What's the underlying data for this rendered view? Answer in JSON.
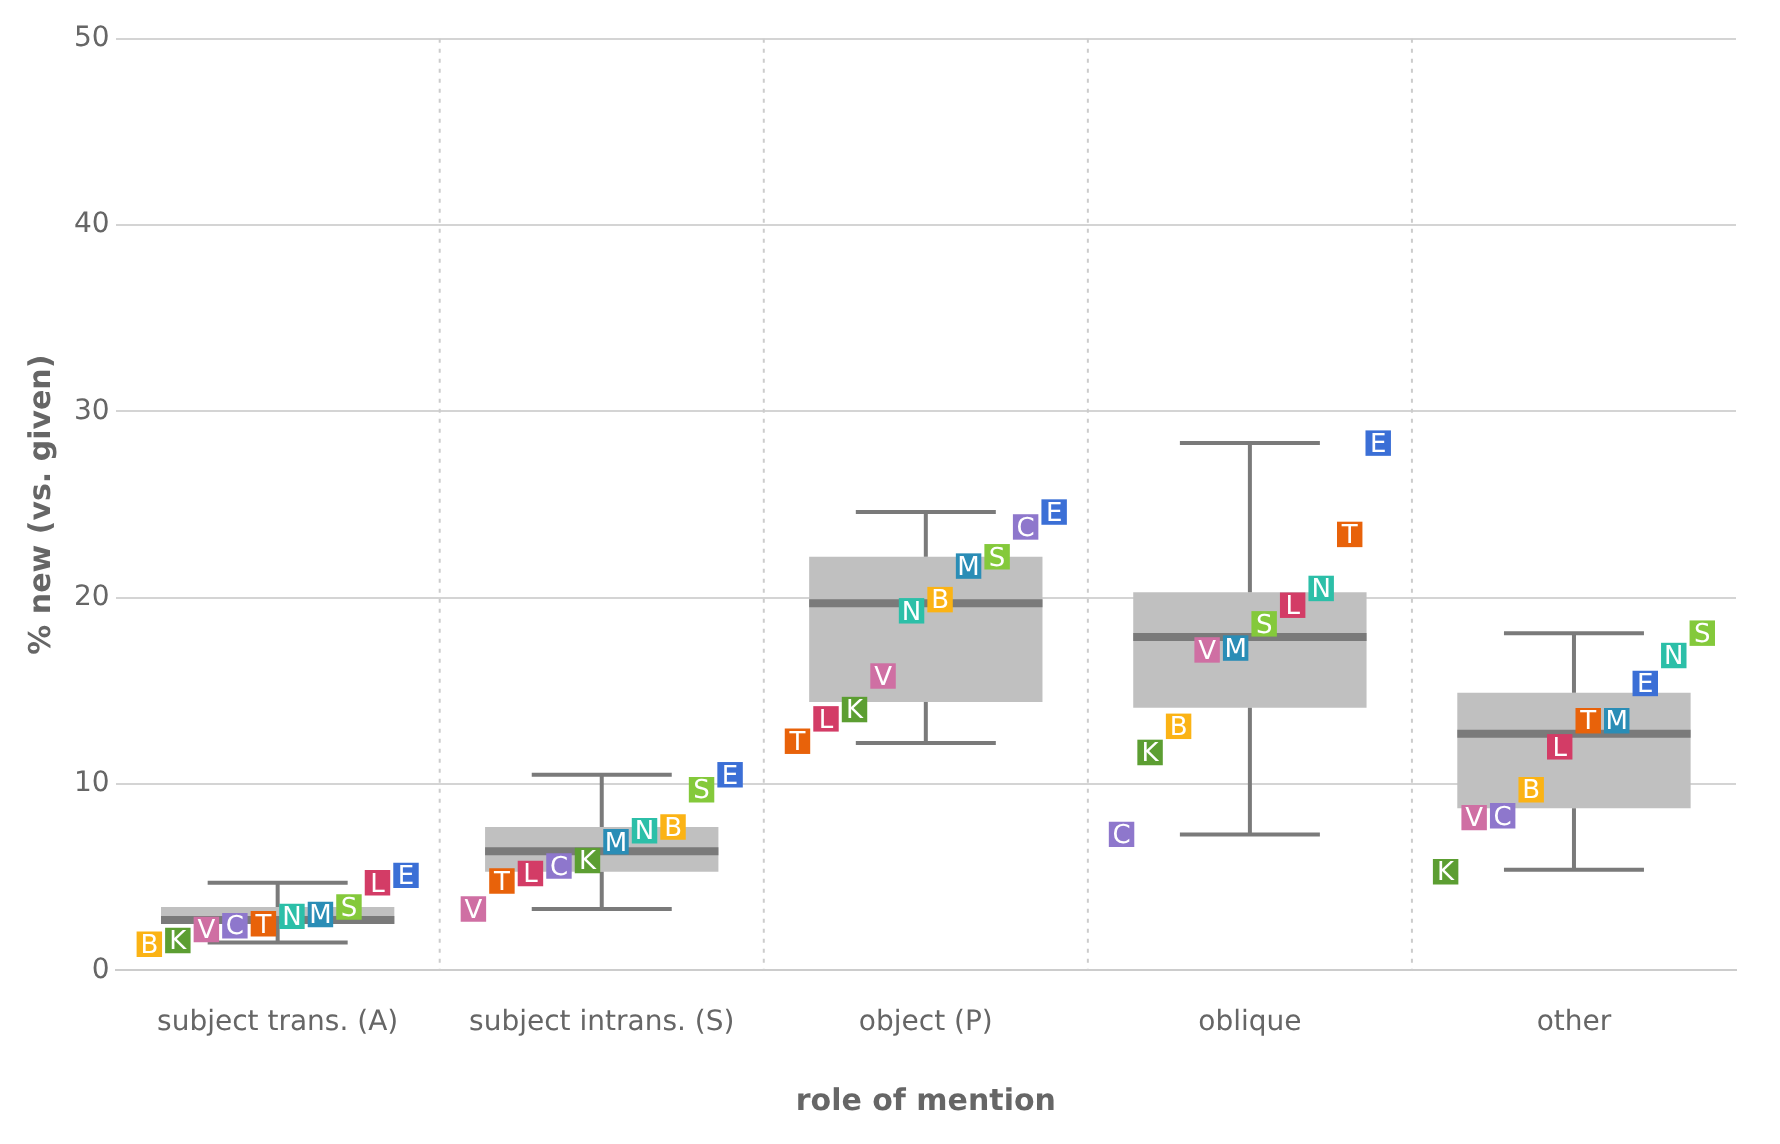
{
  "chart_data": {
    "type": "box",
    "xlabel": "role of mention",
    "ylabel": "% new (vs. given)",
    "categories": [
      "subject trans. (A)",
      "subject intrans. (S)",
      "object (P)",
      "oblique",
      "other"
    ],
    "boxes": [
      {
        "low": 1.5,
        "q1": 2.5,
        "median": 2.7,
        "q3": 3.4,
        "high": 4.7
      },
      {
        "low": 3.3,
        "q1": 5.3,
        "median": 6.4,
        "q3": 7.7,
        "high": 10.5
      },
      {
        "low": 12.2,
        "q1": 14.4,
        "median": 19.7,
        "q3": 22.2,
        "high": 24.6
      },
      {
        "low": 7.3,
        "q1": 14.1,
        "median": 17.9,
        "q3": 20.3,
        "high": 28.3
      },
      {
        "low": 5.4,
        "q1": 8.7,
        "median": 12.7,
        "q3": 14.9,
        "high": 18.1
      }
    ],
    "color": "#c0c0c0",
    "series": [
      {
        "name": "B",
        "type": "scatter",
        "color": "#fbb315",
        "x": [
          "subject trans. (A)",
          "subject intrans. (S)",
          "object (P)",
          "oblique",
          "other"
        ],
        "values": [
          1.4,
          7.7,
          19.9,
          13.1,
          9.7
        ]
      },
      {
        "name": "K",
        "type": "scatter",
        "color": "#5c9e32",
        "x": [
          "subject trans. (A)",
          "subject intrans. (S)",
          "object (P)",
          "oblique",
          "other"
        ],
        "values": [
          1.6,
          5.9,
          14.0,
          11.7,
          5.3
        ]
      },
      {
        "name": "V",
        "type": "scatter",
        "color": "#cf6fa3",
        "x": [
          "subject trans. (A)",
          "subject intrans. (S)",
          "object (P)",
          "oblique",
          "other"
        ],
        "values": [
          2.2,
          3.3,
          15.8,
          17.2,
          8.2
        ]
      },
      {
        "name": "C",
        "type": "scatter",
        "color": "#8e77cc",
        "x": [
          "subject trans. (A)",
          "subject intrans. (S)",
          "object (P)",
          "oblique",
          "other"
        ],
        "values": [
          2.4,
          5.6,
          23.8,
          7.3,
          8.3
        ]
      },
      {
        "name": "T",
        "type": "scatter",
        "color": "#e8620a",
        "x": [
          "subject trans. (A)",
          "subject intrans. (S)",
          "object (P)",
          "oblique",
          "other"
        ],
        "values": [
          2.5,
          4.8,
          12.3,
          23.4,
          13.4
        ]
      },
      {
        "name": "N",
        "type": "scatter",
        "color": "#2cbfa8",
        "x": [
          "subject trans. (A)",
          "subject intrans. (S)",
          "object (P)",
          "oblique",
          "other"
        ],
        "values": [
          2.9,
          7.5,
          19.3,
          20.5,
          16.9
        ]
      },
      {
        "name": "M",
        "type": "scatter",
        "color": "#2a8db6",
        "x": [
          "subject trans. (A)",
          "subject intrans. (S)",
          "object (P)",
          "oblique",
          "other"
        ],
        "values": [
          3.0,
          6.9,
          21.7,
          17.3,
          13.4
        ]
      },
      {
        "name": "S",
        "type": "scatter",
        "color": "#84c93b",
        "x": [
          "subject trans. (A)",
          "subject intrans. (S)",
          "object (P)",
          "oblique",
          "other"
        ],
        "values": [
          3.4,
          9.7,
          22.2,
          18.6,
          18.1
        ]
      },
      {
        "name": "L",
        "type": "scatter",
        "color": "#d33c66",
        "x": [
          "subject trans. (A)",
          "subject intrans. (S)",
          "object (P)",
          "oblique",
          "other"
        ],
        "values": [
          4.7,
          5.2,
          13.5,
          19.6,
          12.0
        ]
      },
      {
        "name": "E",
        "type": "scatter",
        "color": "#3b6fd6",
        "x": [
          "subject trans. (A)",
          "subject intrans. (S)",
          "object (P)",
          "oblique",
          "other"
        ],
        "values": [
          5.1,
          10.5,
          24.6,
          28.3,
          15.4
        ]
      }
    ],
    "ylim": [
      0,
      50
    ],
    "yticks": [
      0,
      10,
      20,
      30,
      40,
      50
    ],
    "grid": true,
    "legend": false,
    "marker": "square"
  }
}
